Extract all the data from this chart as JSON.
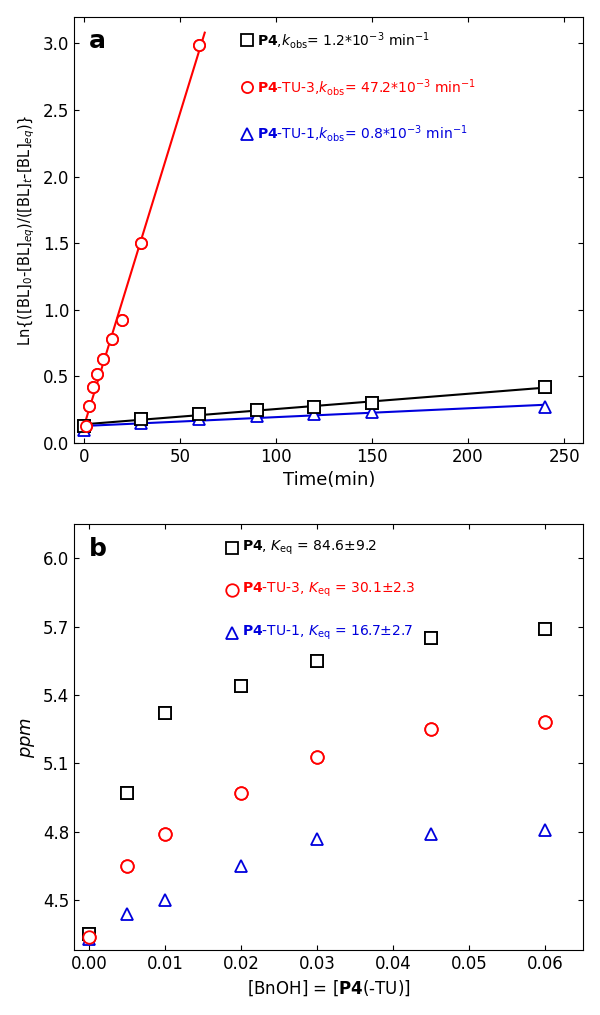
{
  "panel_a": {
    "xlim": [
      -5,
      260
    ],
    "ylim": [
      0.0,
      3.2
    ],
    "xticks": [
      0,
      50,
      100,
      150,
      200,
      250
    ],
    "yticks": [
      0.0,
      0.5,
      1.0,
      1.5,
      2.0,
      2.5,
      3.0
    ],
    "black_x": [
      0,
      30,
      60,
      90,
      120,
      150,
      240
    ],
    "black_y": [
      0.13,
      0.18,
      0.22,
      0.25,
      0.27,
      0.3,
      0.42
    ],
    "red_x": [
      1,
      3,
      5,
      7,
      10,
      15,
      20,
      30,
      60
    ],
    "red_y": [
      0.13,
      0.28,
      0.42,
      0.52,
      0.63,
      0.78,
      0.92,
      1.5,
      2.99
    ],
    "blue_x": [
      0,
      30,
      60,
      90,
      120,
      150,
      240
    ],
    "blue_y": [
      0.1,
      0.15,
      0.18,
      0.2,
      0.22,
      0.23,
      0.27
    ],
    "black_kobs": "1.2",
    "red_kobs": "47.2",
    "blue_kobs": "0.8"
  },
  "panel_b": {
    "xlim": [
      -0.002,
      0.065
    ],
    "ylim": [
      4.28,
      6.15
    ],
    "xticks": [
      0.0,
      0.01,
      0.02,
      0.03,
      0.04,
      0.05,
      0.06
    ],
    "yticks": [
      4.5,
      4.8,
      5.1,
      5.4,
      5.7,
      6.0
    ],
    "black_x": [
      0.0,
      0.005,
      0.01,
      0.02,
      0.03,
      0.045,
      0.06
    ],
    "black_y": [
      4.35,
      4.97,
      5.32,
      5.44,
      5.55,
      5.65,
      5.69
    ],
    "red_x": [
      0.0,
      0.005,
      0.01,
      0.02,
      0.03,
      0.045,
      0.06
    ],
    "red_y": [
      4.34,
      4.65,
      4.79,
      4.97,
      5.13,
      5.25,
      5.28
    ],
    "blue_x": [
      0.0,
      0.005,
      0.01,
      0.02,
      0.03,
      0.045,
      0.06
    ],
    "blue_y": [
      4.33,
      4.44,
      4.5,
      4.65,
      4.77,
      4.79,
      4.81
    ],
    "black_Keq": "84.6±9.2",
    "red_Keq": "30.1±2.3",
    "blue_Keq": "16.7±2.7"
  },
  "black": "#000000",
  "red": "#FF0000",
  "blue": "#0000DD",
  "bg": "#ffffff",
  "marker_size": 8,
  "marker_edge_width": 1.3,
  "line_width": 1.5
}
